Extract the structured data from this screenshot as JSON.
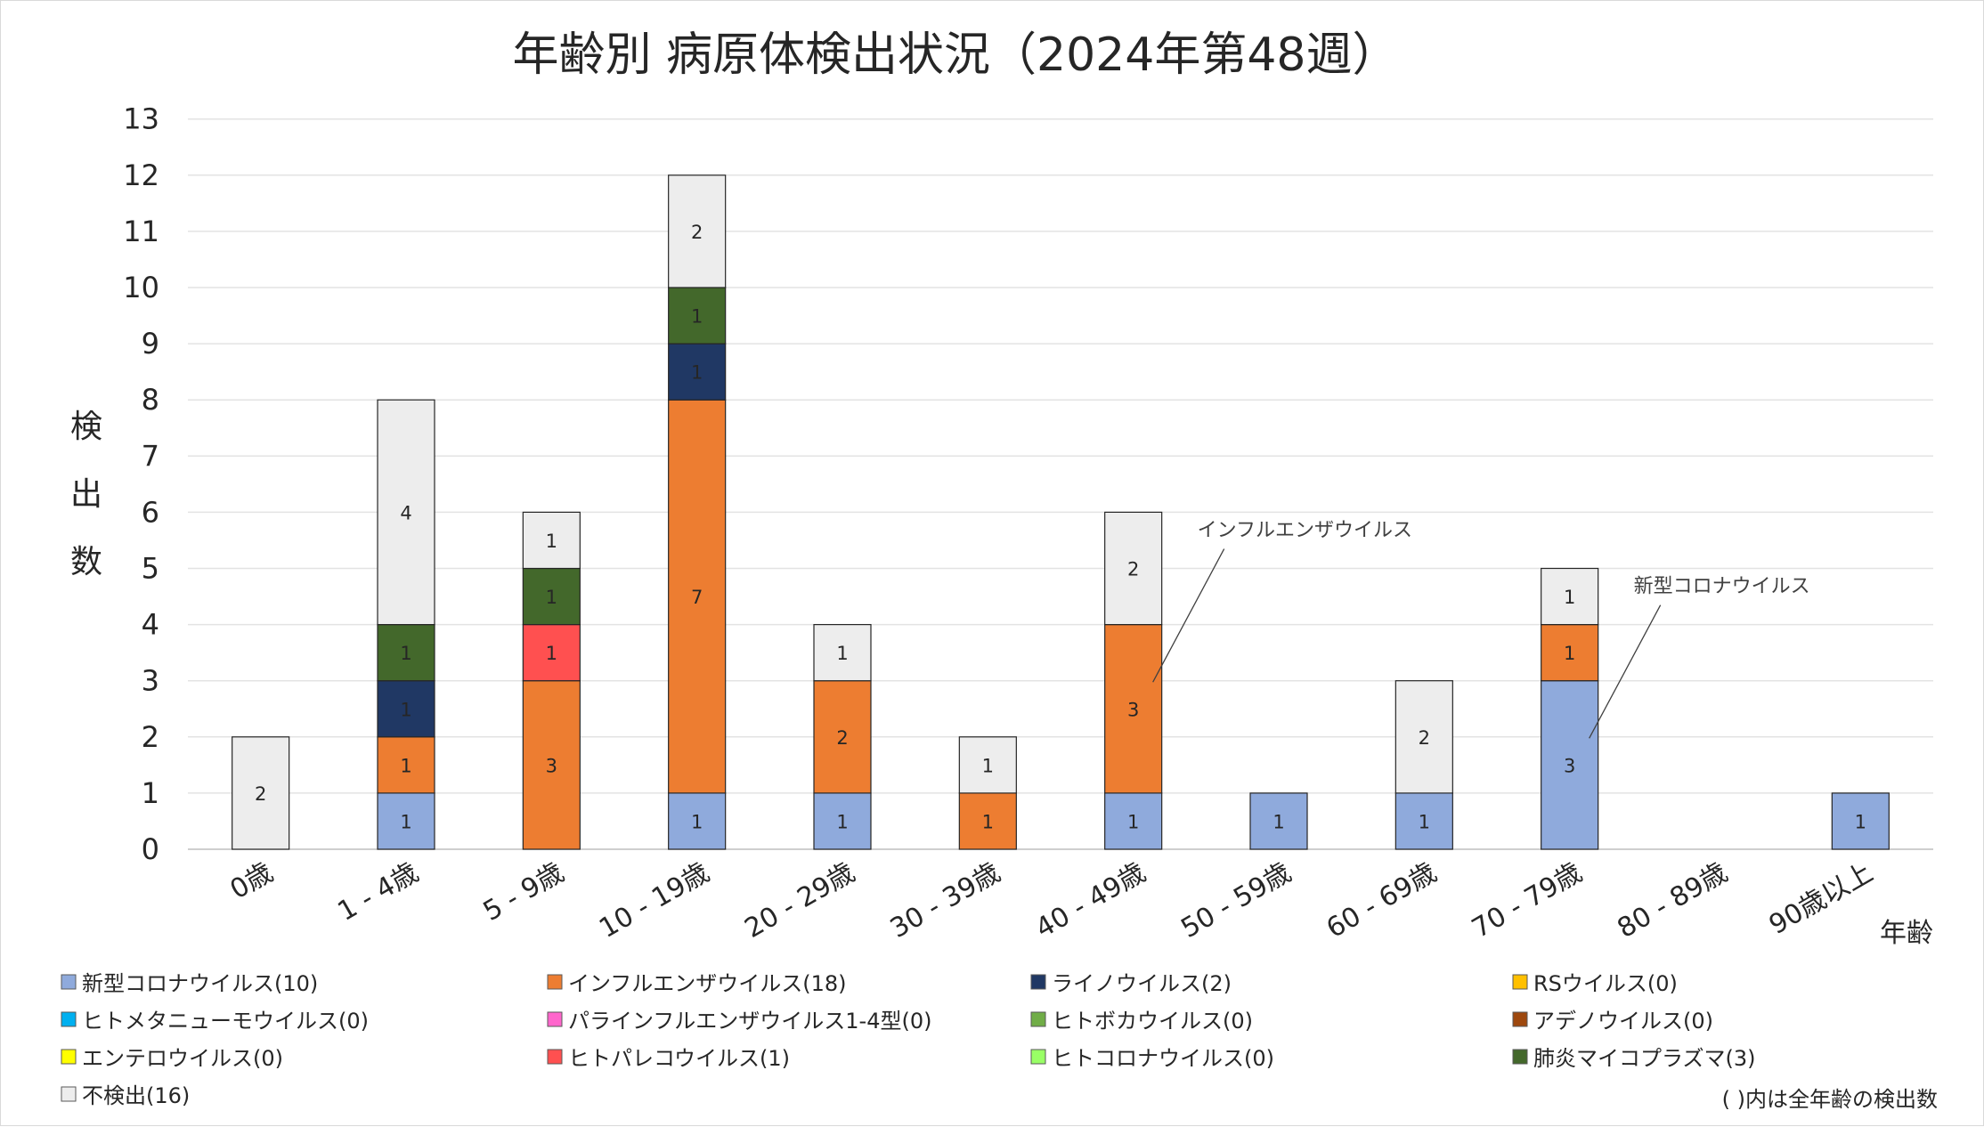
{
  "chart_data": {
    "type": "bar",
    "stacked": true,
    "title": "年齢別 病原体検出状況（2024年第48週）",
    "xlabel": "年齢",
    "ylabel": "検出数",
    "ylim": [
      0,
      13
    ],
    "yticks": [
      0,
      1,
      2,
      3,
      4,
      5,
      6,
      7,
      8,
      9,
      10,
      11,
      12,
      13
    ],
    "grid": true,
    "legend_position": "bottom",
    "categories": [
      "0歳",
      "1 - 4歳",
      "5 - 9歳",
      "10 - 19歳",
      "20 - 29歳",
      "30 - 39歳",
      "40 - 49歳",
      "50 - 59歳",
      "60 - 69歳",
      "70 - 79歳",
      "80 - 89歳",
      "90歳以上"
    ],
    "series": [
      {
        "name": "新型コロナウイルス(10)",
        "color": "#8faadc",
        "values": [
          0,
          1,
          0,
          1,
          1,
          0,
          1,
          1,
          1,
          3,
          0,
          1
        ]
      },
      {
        "name": "インフルエンザウイルス(18)",
        "color": "#ed7d31",
        "values": [
          0,
          1,
          3,
          7,
          2,
          1,
          3,
          0,
          0,
          1,
          0,
          0
        ]
      },
      {
        "name": "ライノウイルス(2)",
        "color": "#203864",
        "values": [
          0,
          1,
          0,
          1,
          0,
          0,
          0,
          0,
          0,
          0,
          0,
          0
        ]
      },
      {
        "name": "RSウイルス(0)",
        "color": "#ffc000",
        "values": [
          0,
          0,
          0,
          0,
          0,
          0,
          0,
          0,
          0,
          0,
          0,
          0
        ]
      },
      {
        "name": "ヒトメタニューモウイルス(0)",
        "color": "#00b0f0",
        "values": [
          0,
          0,
          0,
          0,
          0,
          0,
          0,
          0,
          0,
          0,
          0,
          0
        ]
      },
      {
        "name": "パラインフルエンザウイルス1-4型(0)",
        "color": "#ff66cc",
        "values": [
          0,
          0,
          0,
          0,
          0,
          0,
          0,
          0,
          0,
          0,
          0,
          0
        ]
      },
      {
        "name": "ヒトボカウイルス(0)",
        "color": "#70ad47",
        "values": [
          0,
          0,
          0,
          0,
          0,
          0,
          0,
          0,
          0,
          0,
          0,
          0
        ]
      },
      {
        "name": "アデノウイルス(0)",
        "color": "#9e480e",
        "values": [
          0,
          0,
          0,
          0,
          0,
          0,
          0,
          0,
          0,
          0,
          0,
          0
        ]
      },
      {
        "name": "エンテロウイルス(0)",
        "color": "#ffff00",
        "values": [
          0,
          0,
          0,
          0,
          0,
          0,
          0,
          0,
          0,
          0,
          0,
          0
        ]
      },
      {
        "name": "ヒトパレコウイルス(1)",
        "color": "#ff5050",
        "values": [
          0,
          0,
          1,
          0,
          0,
          0,
          0,
          0,
          0,
          0,
          0,
          0
        ]
      },
      {
        "name": "ヒトコロナウイルス(0)",
        "color": "#99ff66",
        "values": [
          0,
          0,
          0,
          0,
          0,
          0,
          0,
          0,
          0,
          0,
          0,
          0
        ]
      },
      {
        "name": "肺炎マイコプラズマ(3)",
        "color": "#43682b",
        "values": [
          0,
          1,
          1,
          1,
          0,
          0,
          0,
          0,
          0,
          0,
          0,
          0
        ]
      },
      {
        "name": "不検出(16)",
        "color": "#ededed",
        "values": [
          2,
          4,
          1,
          2,
          1,
          1,
          2,
          0,
          2,
          1,
          0,
          0
        ]
      }
    ],
    "annotations": [
      {
        "text": "インフルエンザウイルス",
        "category": "40 - 49歳",
        "series": "インフルエンザウイルス(18)"
      },
      {
        "text": "新型コロナウイルス",
        "category": "70 - 79歳",
        "series": "新型コロナウイルス(10)"
      }
    ],
    "footnote": "( )内は全年齢の検出数"
  }
}
